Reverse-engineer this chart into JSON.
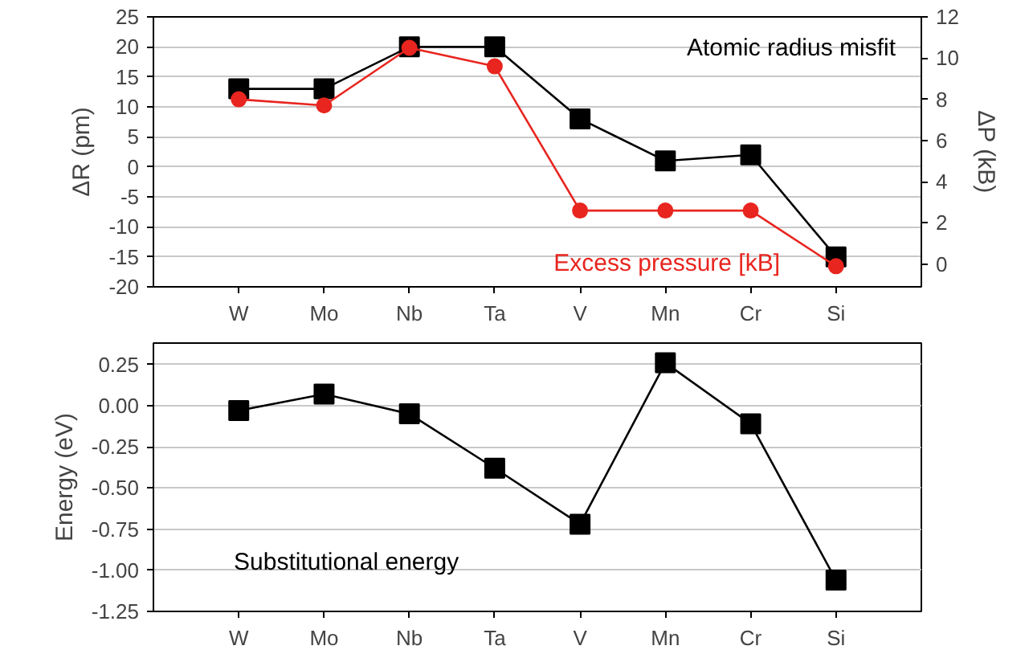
{
  "chart_data": [
    {
      "type": "line",
      "categories": [
        "W",
        "Mo",
        "Nb",
        "Ta",
        "V",
        "Mn",
        "Cr",
        "Si"
      ],
      "ylabel": "ΔR (pm)",
      "y2label": "ΔP (kB)",
      "series": [
        {
          "name": "Atomic radius misfit",
          "color": "#000000",
          "marker": "square",
          "values": [
            13,
            13,
            20,
            20,
            8,
            1,
            2,
            -15
          ]
        },
        {
          "name": "Excess pressure [kB]",
          "color": "#e8251f",
          "marker": "circle",
          "axis": "y2",
          "values": [
            8.0,
            7.7,
            10.5,
            9.6,
            2.6,
            2.6,
            2.6,
            -0.1
          ]
        }
      ],
      "ylim": [
        -20,
        25
      ],
      "yticks": [
        -20,
        -15,
        -10,
        -5,
        0,
        5,
        10,
        15,
        20,
        25
      ],
      "y2lim": [
        -1.1,
        12
      ],
      "y2ticks": [
        0,
        2,
        4,
        6,
        8,
        10,
        12
      ],
      "grid": "y",
      "legend": false
    },
    {
      "type": "line",
      "categories": [
        "W",
        "Mo",
        "Nb",
        "Ta",
        "V",
        "Mn",
        "Cr",
        "Si"
      ],
      "ylabel": "Energy (eV)",
      "series": [
        {
          "name": "Substitutional energy",
          "color": "#000000",
          "marker": "square",
          "values": [
            -0.03,
            0.07,
            -0.05,
            -0.38,
            -0.72,
            0.26,
            -0.11,
            -1.06
          ]
        }
      ],
      "ylim": [
        -1.25,
        0.38
      ],
      "yticks": [
        {
          "value": 0.25,
          "label": "0.25"
        },
        {
          "value": 0,
          "label": "0.00"
        },
        {
          "value": -0.25,
          "label": "-0.25"
        },
        {
          "value": -0.5,
          "label": "-0.50"
        },
        {
          "value": -0.75,
          "label": "-0.75"
        },
        {
          "value": -1,
          "label": "-1.00"
        },
        {
          "value": -1.25,
          "label": "-1.25"
        }
      ],
      "grid": "y",
      "legend": false
    }
  ]
}
